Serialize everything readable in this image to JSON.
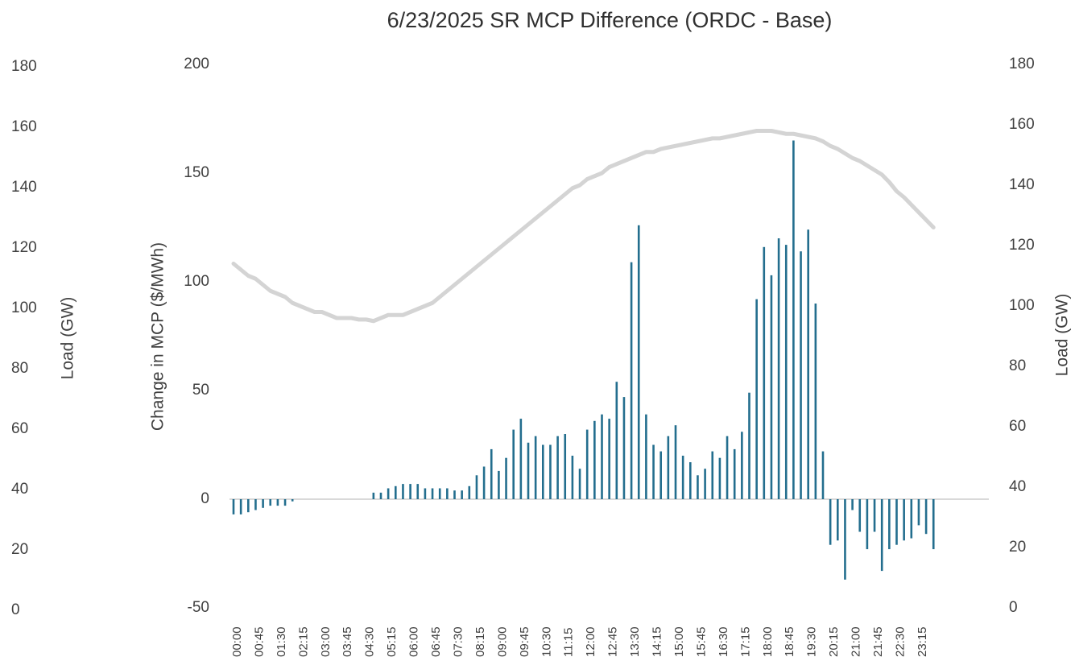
{
  "chart_data": {
    "type": "combo",
    "title": "6/23/2025  SR MCP Difference (ORDC - Base)",
    "ylabel": "Change in MCP ($/MWh)",
    "y2label": "Load (GW)",
    "categories": [
      "00:00",
      null,
      null,
      "00:45",
      null,
      null,
      "01:30",
      null,
      null,
      "02:15",
      null,
      null,
      "03:00",
      null,
      null,
      "03:45",
      null,
      null,
      "04:30",
      null,
      null,
      "05:15",
      null,
      null,
      "06:00",
      null,
      null,
      "06:45",
      null,
      null,
      "07:30",
      null,
      null,
      "08:15",
      null,
      null,
      "09:00",
      null,
      null,
      "09:45",
      null,
      null,
      "10:30",
      null,
      null,
      "11:15",
      null,
      null,
      "12:00",
      null,
      null,
      "12:45",
      null,
      null,
      "13:30",
      null,
      null,
      "14:15",
      null,
      null,
      "15:00",
      null,
      null,
      "15:45",
      null,
      null,
      "16:30",
      null,
      null,
      "17:15",
      null,
      null,
      "18:00",
      null,
      null,
      "18:45",
      null,
      null,
      "19:30",
      null,
      null,
      "20:15",
      null,
      null,
      "21:00",
      null,
      null,
      "21:45",
      null,
      null,
      "22:30",
      null,
      null,
      "23:15",
      null,
      null
    ],
    "series": [
      {
        "type": "bar",
        "color": "#236e8e",
        "values": [
          -7,
          -7,
          -6,
          -5,
          -4,
          -3,
          -3,
          -3,
          -1,
          0,
          0,
          0,
          0,
          0,
          0,
          0,
          0,
          0,
          0,
          3,
          3,
          5,
          6,
          7,
          7,
          7,
          5,
          5,
          5,
          5,
          4,
          4,
          6,
          11,
          15,
          23,
          13,
          19,
          32,
          37,
          26,
          29,
          25,
          25,
          29,
          30,
          20,
          14,
          32,
          36,
          39,
          37,
          54,
          47,
          109,
          126,
          39,
          25,
          22,
          29,
          34,
          20,
          17,
          11,
          14,
          22,
          19,
          29,
          23,
          31,
          49,
          92,
          116,
          103,
          120,
          117,
          165,
          114,
          124,
          90,
          22,
          -21,
          -19,
          -37,
          -5,
          -15,
          -23,
          -15,
          -33,
          -23,
          -21,
          -19,
          -18,
          -12,
          -16,
          -23
        ]
      },
      {
        "type": "line",
        "axis": "y2",
        "color": "#d4d4d4",
        "values": [
          114,
          112,
          110,
          109,
          107,
          105,
          104,
          103,
          101,
          100,
          99,
          98,
          98,
          97,
          96,
          96,
          96,
          95.5,
          95.5,
          95,
          96,
          97,
          97,
          97,
          98,
          99,
          100,
          101,
          103,
          105,
          107,
          109,
          111,
          113,
          115,
          117,
          119,
          121,
          123,
          125,
          127,
          129,
          131,
          133,
          135,
          137,
          139,
          140,
          142,
          143,
          144,
          146,
          147,
          148,
          149,
          150,
          151,
          151,
          152,
          152.5,
          153,
          153.5,
          154,
          154.5,
          155,
          155.5,
          155.5,
          156,
          156.5,
          157,
          157.5,
          158,
          158,
          158,
          157.5,
          157,
          157,
          156.5,
          156,
          155.5,
          154.5,
          153,
          152,
          150.5,
          149,
          148,
          146.5,
          145,
          143.5,
          141,
          138,
          136,
          133.5,
          131,
          128.5,
          126
        ]
      }
    ],
    "ylim": [
      -50,
      200
    ],
    "yticks": [
      -50,
      0,
      50,
      100,
      150,
      200
    ],
    "y2lim": [
      0,
      180
    ],
    "y2ticks": [
      0,
      20,
      40,
      60,
      80,
      100,
      120,
      140,
      160,
      180
    ]
  }
}
